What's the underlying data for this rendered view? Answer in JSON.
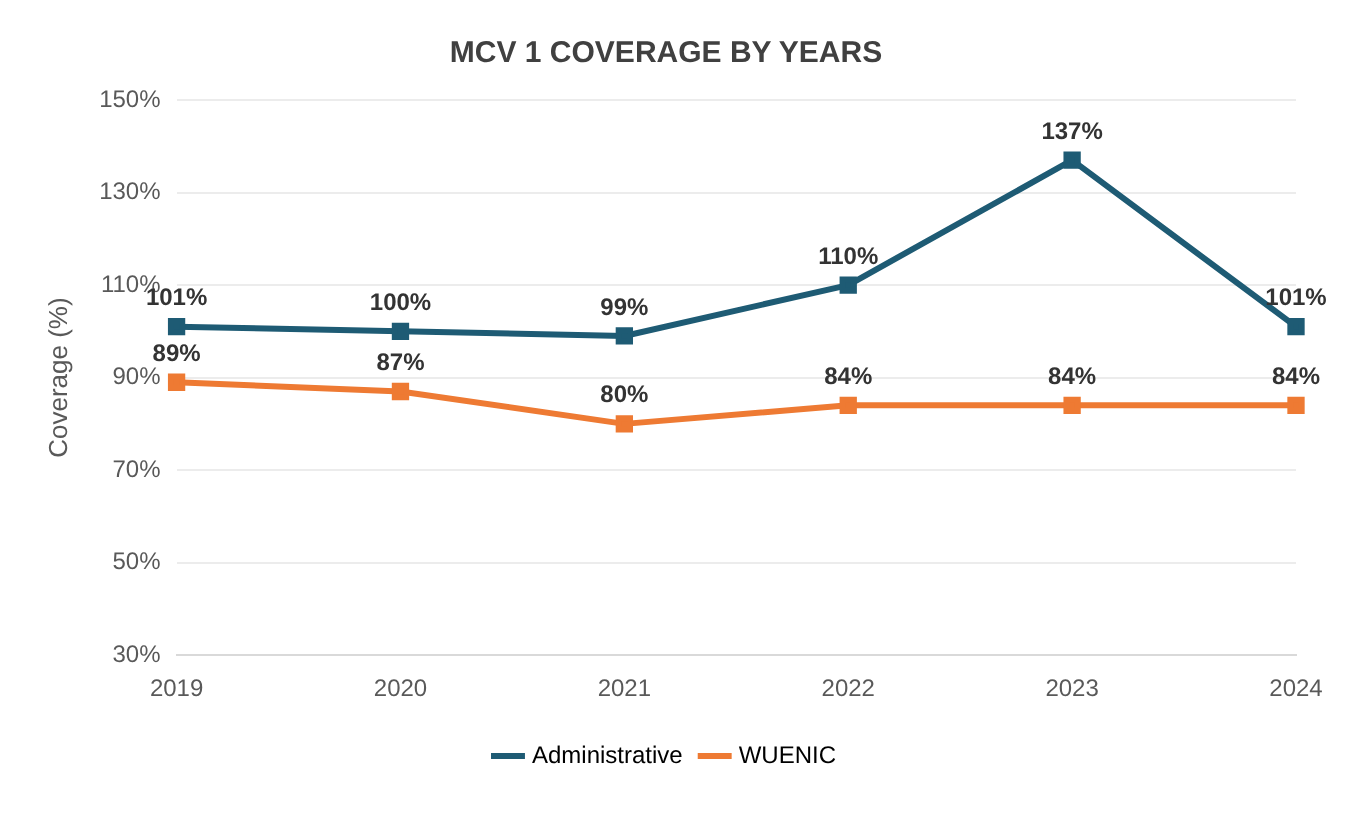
{
  "chart_data": {
    "type": "line",
    "title": "MCV 1 COVERAGE BY YEARS",
    "ylabel": "Coverage (%)",
    "categories": [
      "2019",
      "2020",
      "2021",
      "2022",
      "2023",
      "2024"
    ],
    "series": [
      {
        "name": "Administrative",
        "color": "#1e5b74",
        "values": [
          101,
          100,
          99,
          110,
          137,
          101
        ],
        "value_labels": [
          "101%",
          "100%",
          "99%",
          "110%",
          "137%",
          "101%"
        ]
      },
      {
        "name": "WUENIC",
        "color": "#ee7a33",
        "values": [
          89,
          87,
          80,
          84,
          84,
          84
        ],
        "value_labels": [
          "89%",
          "87%",
          "80%",
          "84%",
          "84%",
          "84%"
        ]
      }
    ],
    "ylim": [
      30,
      150
    ],
    "yticks": [
      {
        "value": 30,
        "label": "30%"
      },
      {
        "value": 50,
        "label": "50%"
      },
      {
        "value": 70,
        "label": "70%"
      },
      {
        "value": 90,
        "label": "90%"
      },
      {
        "value": 110,
        "label": "110%"
      },
      {
        "value": 130,
        "label": "130%"
      },
      {
        "value": 150,
        "label": "150%"
      }
    ],
    "grid": "y",
    "legend": "bottom",
    "marker": "square",
    "line_style": "solid"
  }
}
